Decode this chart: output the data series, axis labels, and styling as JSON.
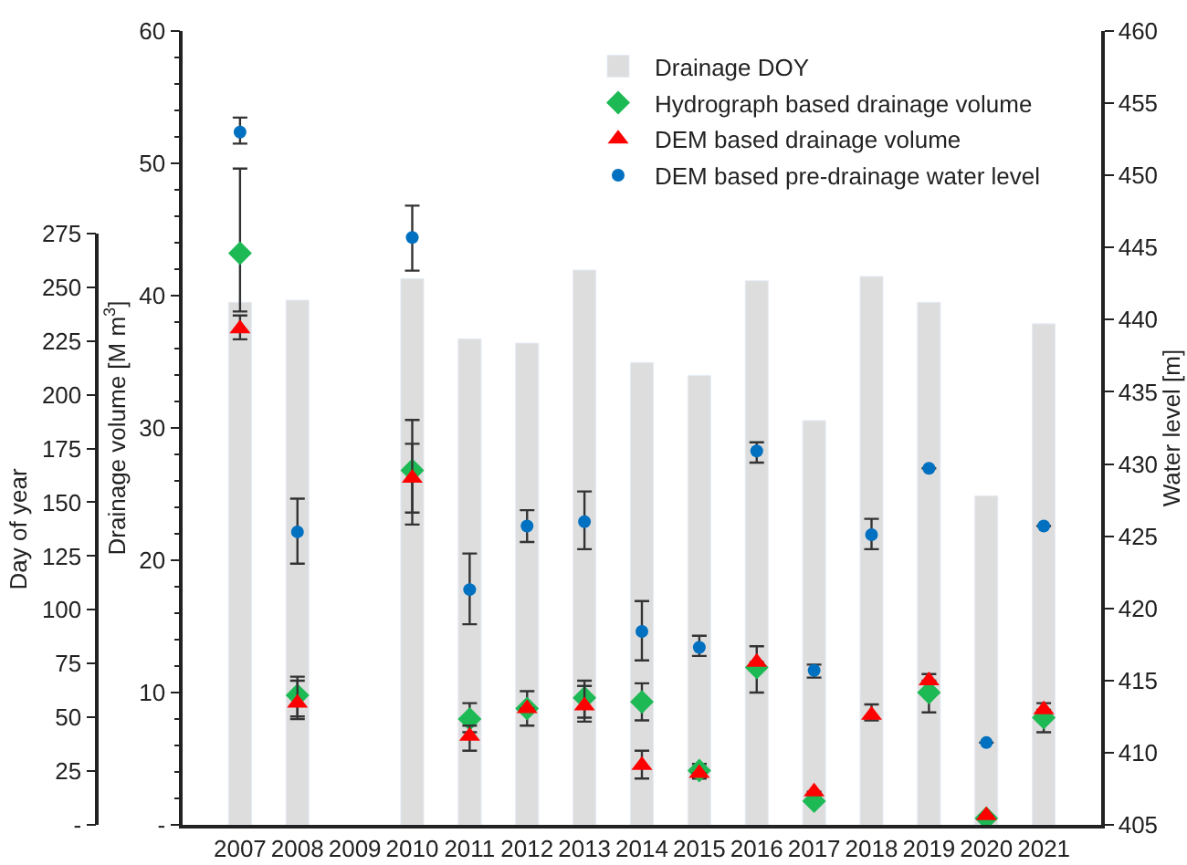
{
  "chart_data": {
    "type": "bar",
    "categories": [
      "2007",
      "2008",
      "2009",
      "2010",
      "2011",
      "2012",
      "2013",
      "2014",
      "2015",
      "2016",
      "2017",
      "2018",
      "2019",
      "2020",
      "2021"
    ],
    "series": [
      {
        "name": "Drainage DOY",
        "axis": "y3",
        "color": "#dddddd",
        "values": [
          243,
          244,
          null,
          254,
          226,
          224,
          258,
          215,
          209,
          253,
          188,
          255,
          243,
          153,
          233
        ]
      },
      {
        "name": "Hydrograph based drainage volume",
        "type": "scatter",
        "axis": "y",
        "marker": "diamond",
        "color": "#1db954",
        "values": [
          43.2,
          9.8,
          null,
          26.8,
          8.0,
          8.8,
          9.6,
          9.3,
          4.1,
          11.9,
          1.8,
          null,
          10.0,
          0.5,
          8.1
        ],
        "errors": [
          [
            38.8,
            49.6
          ],
          [
            8.0,
            11.2
          ],
          null,
          [
            22.7,
            30.6
          ],
          [
            7.0,
            9.2
          ],
          [
            7.5,
            10.1
          ],
          [
            7.8,
            10.9
          ],
          [
            7.9,
            10.7
          ],
          [
            3.5,
            4.6
          ],
          [
            10.0,
            13.5
          ],
          null,
          null,
          [
            8.5,
            11.4
          ],
          null,
          [
            7.0,
            9.2
          ]
        ]
      },
      {
        "name": "DEM based drainage volume",
        "type": "scatter",
        "axis": "y",
        "marker": "triangle",
        "color": "#ff0000",
        "values": [
          37.5,
          9.2,
          null,
          26.2,
          6.7,
          8.8,
          9.0,
          4.5,
          3.9,
          12.3,
          2.5,
          8.3,
          10.9,
          0.7,
          8.7
        ],
        "errors": [
          [
            36.7,
            38.5
          ],
          [
            8.2,
            10.9
          ],
          null,
          [
            23.6,
            28.8
          ],
          [
            5.6,
            7.5
          ],
          null,
          [
            8.1,
            10.5
          ],
          [
            3.5,
            5.6
          ],
          null,
          null,
          null,
          [
            7.9,
            9.1
          ],
          null,
          null,
          null
        ]
      },
      {
        "name": "DEM based pre-drainage water level",
        "type": "scatter",
        "axis": "y2",
        "marker": "circle",
        "color": "#0070c0",
        "values": [
          453.0,
          425.3,
          null,
          445.7,
          421.3,
          425.7,
          426.0,
          418.4,
          417.3,
          430.9,
          415.7,
          425.1,
          429.7,
          410.7,
          425.7
        ],
        "errors": [
          [
            452.2,
            454.0
          ],
          [
            423.1,
            427.6
          ],
          null,
          [
            443.4,
            447.9
          ],
          [
            418.9,
            423.8
          ],
          [
            424.6,
            426.8
          ],
          [
            424.1,
            428.1
          ],
          [
            416.4,
            420.5
          ],
          [
            416.7,
            418.1
          ],
          [
            430.1,
            431.5
          ],
          [
            415.2,
            416.1
          ],
          [
            424.1,
            426.2
          ],
          null,
          null,
          null
        ]
      }
    ],
    "ylabel": "Drainage volume [M m$^{3}$]",
    "y2label": "Water level [m]",
    "y3label": "Day of year",
    "ylim": [
      0,
      60
    ],
    "yticks": [
      {
        "value": 0,
        "label": "-"
      },
      10,
      20,
      30,
      40,
      50,
      60
    ],
    "y2lim": [
      405,
      460
    ],
    "y2ticks": [
      405,
      410,
      415,
      420,
      425,
      430,
      435,
      440,
      445,
      450,
      455,
      460
    ],
    "y3lim": [
      0,
      275
    ],
    "y3ticks": [
      {
        "value": 0,
        "label": "-"
      },
      25,
      50,
      75,
      100,
      125,
      150,
      175,
      200,
      225,
      250,
      275
    ],
    "legend": "top right",
    "grid": false
  }
}
